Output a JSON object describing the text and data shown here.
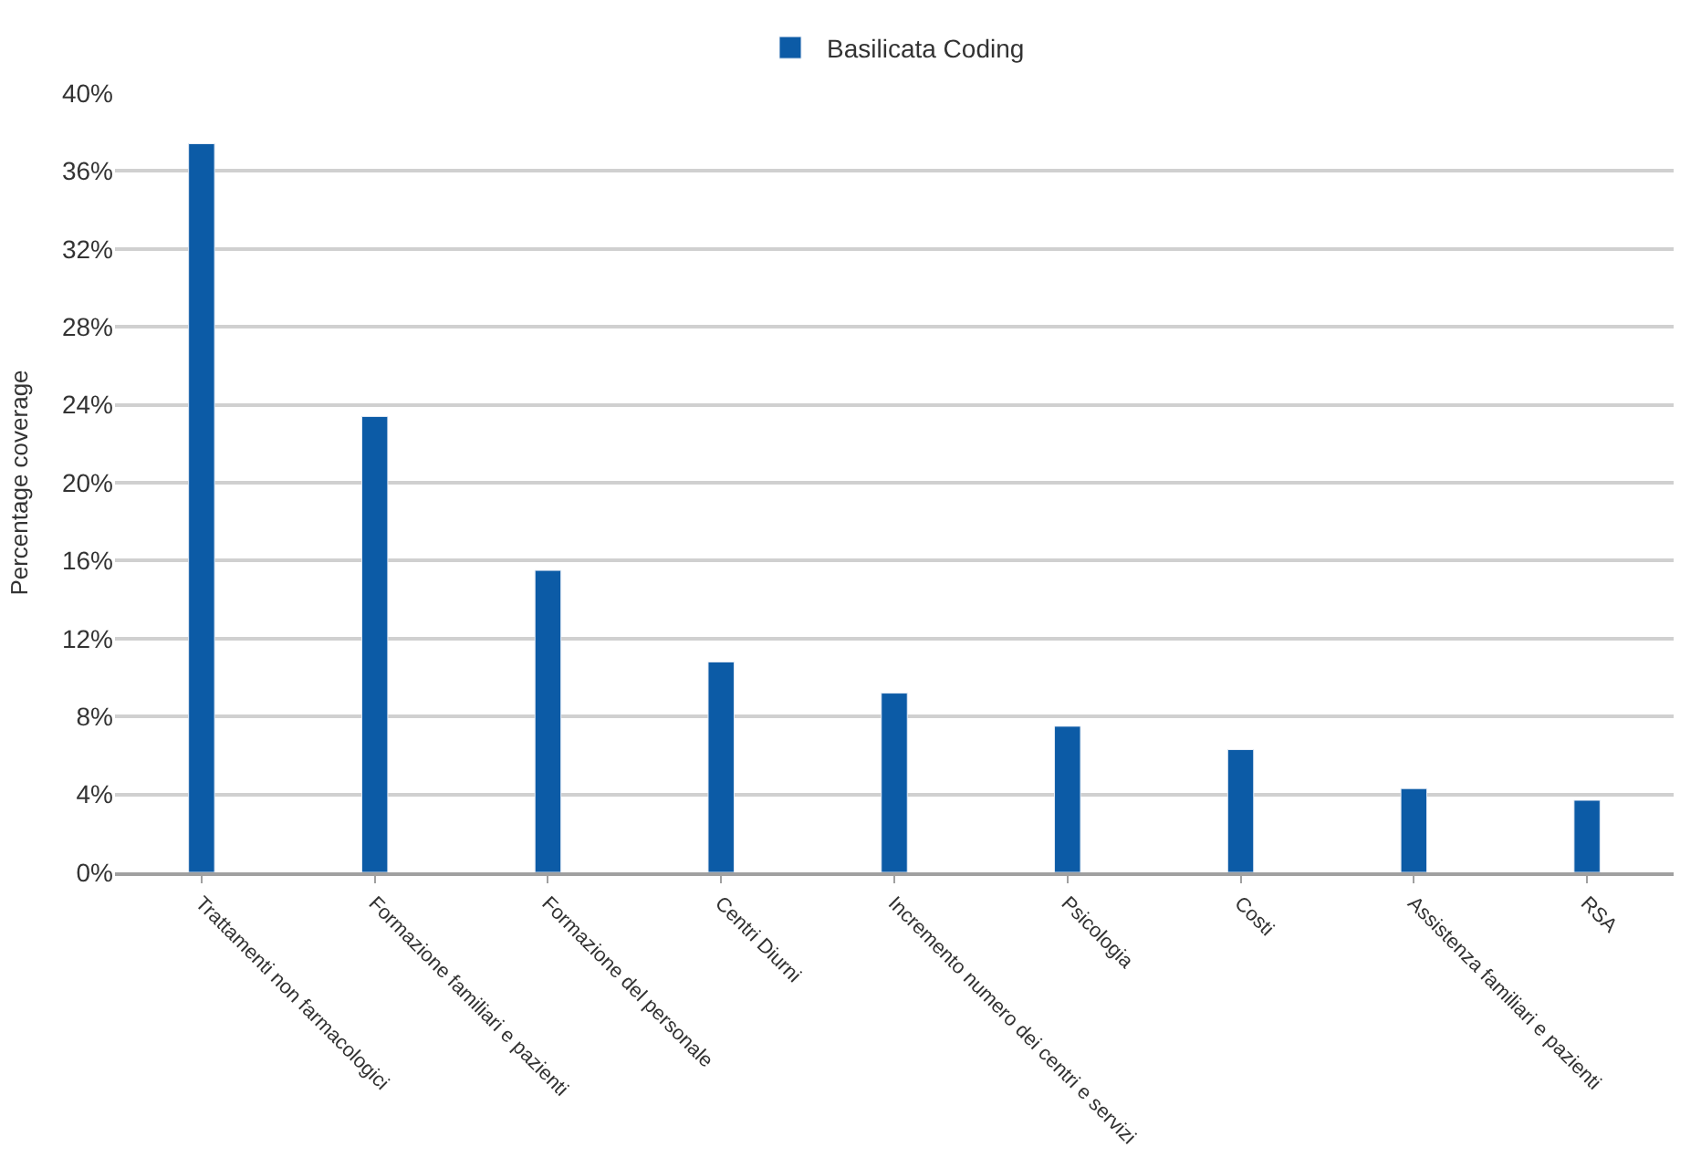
{
  "chart_data": {
    "type": "bar",
    "ylabel": "Percentage coverage",
    "categories": [
      "Trattamenti non farmacologici",
      "Formazione familiari e pazienti",
      "Formazione del personale",
      "Centri Diurni",
      "Incremento numero dei centri e servizi",
      "Psicologia",
      "Costi",
      "Assistenza familiari e pazienti",
      "RSA"
    ],
    "series": [
      {
        "name": "Basilicata Coding",
        "color": "#0c5ba6",
        "values": [
          37.4,
          23.4,
          15.5,
          10.8,
          9.2,
          7.5,
          6.3,
          4.3,
          3.7
        ]
      }
    ],
    "ylim": [
      0,
      40
    ],
    "yticks": [
      {
        "value": 0,
        "label": "0%"
      },
      {
        "value": 4,
        "label": "4%"
      },
      {
        "value": 8,
        "label": "8%"
      },
      {
        "value": 12,
        "label": "12%"
      },
      {
        "value": 16,
        "label": "16%"
      },
      {
        "value": 20,
        "label": "20%"
      },
      {
        "value": 24,
        "label": "24%"
      },
      {
        "value": 28,
        "label": "28%"
      },
      {
        "value": 32,
        "label": "32%"
      },
      {
        "value": 36,
        "label": "36%"
      },
      {
        "value": 40,
        "label": "40%"
      }
    ],
    "grid": "y",
    "legend": "top"
  }
}
